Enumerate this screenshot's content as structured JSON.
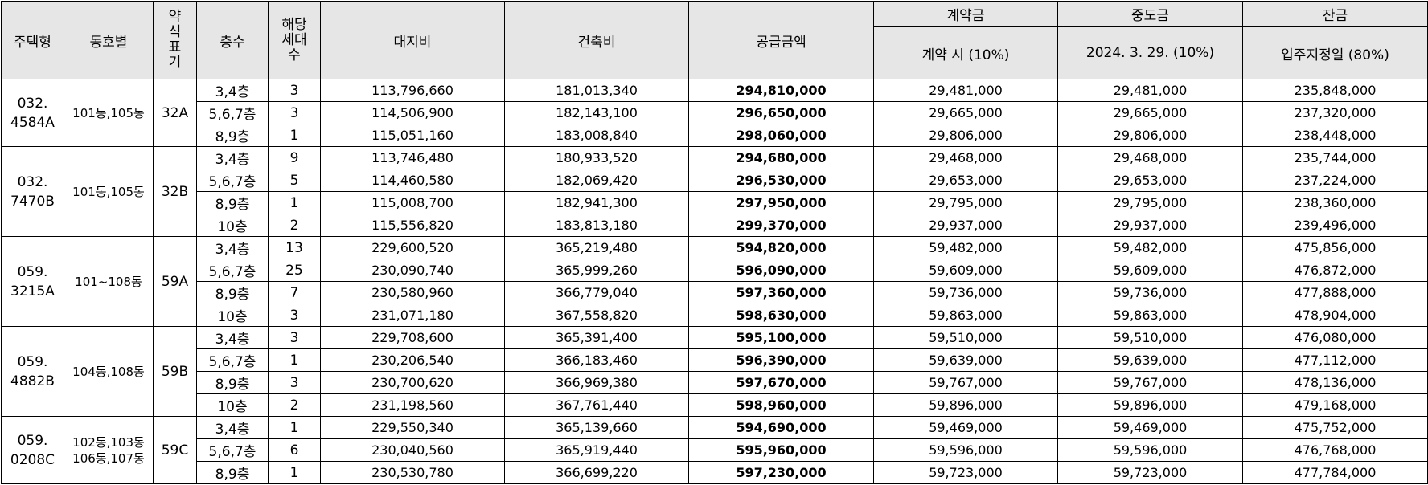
{
  "headers": {
    "type": "주택형",
    "dong": "동호별",
    "abbr": "약식표기",
    "abbr_lines": [
      "약",
      "식",
      "표",
      "기"
    ],
    "floor": "층수",
    "count": "해당세대수",
    "count_lines": [
      "해당",
      "세대",
      "수"
    ],
    "land": "대지비",
    "building": "건축비",
    "supply": "공급금액",
    "deposit": "계약금",
    "interim": "중도금",
    "balance": "잔금",
    "deposit_sub": "계약 시 (10%)",
    "interim_sub": "2024. 3. 29. (10%)",
    "balance_sub": "입주지정일 (80%)"
  },
  "groups": [
    {
      "type_lines": [
        "032.",
        "4584A"
      ],
      "dong_lines": [
        "101동,105동"
      ],
      "abbr": "32A",
      "rows": [
        {
          "floor": "3,4층",
          "count": "3",
          "land": "113,796,660",
          "building": "181,013,340",
          "supply": "294,810,000",
          "deposit": "29,481,000",
          "interim": "29,481,000",
          "balance": "235,848,000"
        },
        {
          "floor": "5,6,7층",
          "count": "3",
          "land": "114,506,900",
          "building": "182,143,100",
          "supply": "296,650,000",
          "deposit": "29,665,000",
          "interim": "29,665,000",
          "balance": "237,320,000"
        },
        {
          "floor": "8,9층",
          "count": "1",
          "land": "115,051,160",
          "building": "183,008,840",
          "supply": "298,060,000",
          "deposit": "29,806,000",
          "interim": "29,806,000",
          "balance": "238,448,000"
        }
      ]
    },
    {
      "type_lines": [
        "032.",
        "7470B"
      ],
      "dong_lines": [
        "101동,105동"
      ],
      "abbr": "32B",
      "rows": [
        {
          "floor": "3,4층",
          "count": "9",
          "land": "113,746,480",
          "building": "180,933,520",
          "supply": "294,680,000",
          "deposit": "29,468,000",
          "interim": "29,468,000",
          "balance": "235,744,000"
        },
        {
          "floor": "5,6,7층",
          "count": "5",
          "land": "114,460,580",
          "building": "182,069,420",
          "supply": "296,530,000",
          "deposit": "29,653,000",
          "interim": "29,653,000",
          "balance": "237,224,000"
        },
        {
          "floor": "8,9층",
          "count": "1",
          "land": "115,008,700",
          "building": "182,941,300",
          "supply": "297,950,000",
          "deposit": "29,795,000",
          "interim": "29,795,000",
          "balance": "238,360,000"
        },
        {
          "floor": "10층",
          "count": "2",
          "land": "115,556,820",
          "building": "183,813,180",
          "supply": "299,370,000",
          "deposit": "29,937,000",
          "interim": "29,937,000",
          "balance": "239,496,000"
        }
      ]
    },
    {
      "type_lines": [
        "059.",
        "3215A"
      ],
      "dong_lines": [
        "101~108동"
      ],
      "abbr": "59A",
      "rows": [
        {
          "floor": "3,4층",
          "count": "13",
          "land": "229,600,520",
          "building": "365,219,480",
          "supply": "594,820,000",
          "deposit": "59,482,000",
          "interim": "59,482,000",
          "balance": "475,856,000"
        },
        {
          "floor": "5,6,7층",
          "count": "25",
          "land": "230,090,740",
          "building": "365,999,260",
          "supply": "596,090,000",
          "deposit": "59,609,000",
          "interim": "59,609,000",
          "balance": "476,872,000"
        },
        {
          "floor": "8,9층",
          "count": "7",
          "land": "230,580,960",
          "building": "366,779,040",
          "supply": "597,360,000",
          "deposit": "59,736,000",
          "interim": "59,736,000",
          "balance": "477,888,000"
        },
        {
          "floor": "10층",
          "count": "3",
          "land": "231,071,180",
          "building": "367,558,820",
          "supply": "598,630,000",
          "deposit": "59,863,000",
          "interim": "59,863,000",
          "balance": "478,904,000"
        }
      ]
    },
    {
      "type_lines": [
        "059.",
        "4882B"
      ],
      "dong_lines": [
        "104동,108동"
      ],
      "abbr": "59B",
      "rows": [
        {
          "floor": "3,4층",
          "count": "3",
          "land": "229,708,600",
          "building": "365,391,400",
          "supply": "595,100,000",
          "deposit": "59,510,000",
          "interim": "59,510,000",
          "balance": "476,080,000"
        },
        {
          "floor": "5,6,7층",
          "count": "1",
          "land": "230,206,540",
          "building": "366,183,460",
          "supply": "596,390,000",
          "deposit": "59,639,000",
          "interim": "59,639,000",
          "balance": "477,112,000"
        },
        {
          "floor": "8,9층",
          "count": "3",
          "land": "230,700,620",
          "building": "366,969,380",
          "supply": "597,670,000",
          "deposit": "59,767,000",
          "interim": "59,767,000",
          "balance": "478,136,000"
        },
        {
          "floor": "10층",
          "count": "2",
          "land": "231,198,560",
          "building": "367,761,440",
          "supply": "598,960,000",
          "deposit": "59,896,000",
          "interim": "59,896,000",
          "balance": "479,168,000"
        }
      ]
    },
    {
      "type_lines": [
        "059.",
        "0208C"
      ],
      "dong_lines": [
        "102동,103동",
        "106동,107동"
      ],
      "abbr": "59C",
      "rows": [
        {
          "floor": "3,4층",
          "count": "1",
          "land": "229,550,340",
          "building": "365,139,660",
          "supply": "594,690,000",
          "deposit": "59,469,000",
          "interim": "59,469,000",
          "balance": "475,752,000"
        },
        {
          "floor": "5,6,7층",
          "count": "6",
          "land": "230,040,560",
          "building": "365,919,440",
          "supply": "595,960,000",
          "deposit": "59,596,000",
          "interim": "59,596,000",
          "balance": "476,768,000"
        },
        {
          "floor": "8,9층",
          "count": "1",
          "land": "230,530,780",
          "building": "366,699,220",
          "supply": "597,230,000",
          "deposit": "59,723,000",
          "interim": "59,723,000",
          "balance": "477,784,000"
        }
      ]
    }
  ]
}
